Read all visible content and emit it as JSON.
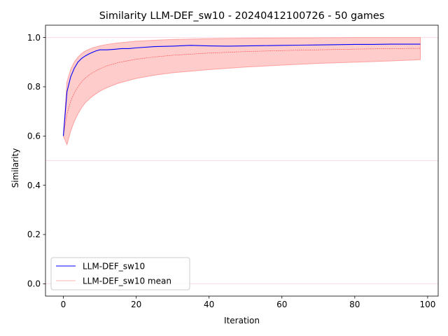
{
  "chart_data": {
    "type": "line",
    "title": "Similarity LLM-DEF_sw10 - 20240412100726 - 50 games",
    "xlabel": "Iteration",
    "ylabel": "Similarity",
    "xlim": [
      -4.9,
      102.9
    ],
    "ylim": [
      -0.05,
      1.05
    ],
    "x_ticks": [
      0,
      20,
      40,
      60,
      80,
      100
    ],
    "y_ticks": [
      0.0,
      0.2,
      0.4,
      0.6,
      0.8,
      1.0
    ],
    "x_tick_labels": [
      "0",
      "20",
      "40",
      "60",
      "80",
      "100"
    ],
    "y_tick_labels": [
      "0.0",
      "0.2",
      "0.4",
      "0.6",
      "0.8",
      "1.0"
    ],
    "hlines": [
      {
        "y": 1.0,
        "color": "#ffc0cb"
      },
      {
        "y": 0.5,
        "color": "#ffc0cb"
      },
      {
        "y": 0.0,
        "color": "#ffc0cb"
      }
    ],
    "grid": false,
    "legend_position": "lower-left",
    "series": [
      {
        "name": "LLM-DEF_sw10",
        "color": "#0000ff",
        "x": [
          0,
          1,
          2,
          3,
          4,
          5,
          6,
          7,
          8,
          9,
          10,
          12,
          14,
          16,
          18,
          20,
          25,
          30,
          35,
          40,
          45,
          50,
          55,
          60,
          65,
          70,
          75,
          80,
          85,
          90,
          95,
          98
        ],
        "values": [
          0.6,
          0.78,
          0.84,
          0.875,
          0.9,
          0.915,
          0.925,
          0.933,
          0.94,
          0.946,
          0.95,
          0.95,
          0.952,
          0.955,
          0.955,
          0.958,
          0.963,
          0.965,
          0.968,
          0.966,
          0.965,
          0.966,
          0.967,
          0.968,
          0.969,
          0.97,
          0.971,
          0.972,
          0.972,
          0.973,
          0.973,
          0.973
        ]
      },
      {
        "name": "LLM-DEF_sw10 mean",
        "color": "#ff0000",
        "x": [
          0,
          1,
          2,
          3,
          4,
          5,
          6,
          7,
          8,
          10,
          12,
          15,
          20,
          25,
          30,
          40,
          50,
          60,
          70,
          80,
          90,
          98
        ],
        "values": [
          0.6,
          0.69,
          0.74,
          0.775,
          0.8,
          0.82,
          0.835,
          0.847,
          0.857,
          0.873,
          0.885,
          0.898,
          0.912,
          0.921,
          0.928,
          0.937,
          0.943,
          0.947,
          0.95,
          0.953,
          0.955,
          0.956
        ]
      }
    ],
    "band": {
      "color": "#ffcccc",
      "edge_color": "#ffa0a0",
      "x": [
        0,
        1,
        2,
        3,
        4,
        5,
        6,
        8,
        10,
        12,
        15,
        20,
        25,
        30,
        40,
        50,
        60,
        70,
        80,
        90,
        98
      ],
      "lower": [
        0.6,
        0.565,
        0.62,
        0.66,
        0.69,
        0.715,
        0.735,
        0.762,
        0.782,
        0.797,
        0.814,
        0.834,
        0.847,
        0.857,
        0.87,
        0.88,
        0.888,
        0.895,
        0.9,
        0.905,
        0.91
      ],
      "upper": [
        0.6,
        0.82,
        0.87,
        0.9,
        0.92,
        0.935,
        0.945,
        0.958,
        0.966,
        0.972,
        0.978,
        0.985,
        0.989,
        0.992,
        0.995,
        0.997,
        0.998,
        0.999,
        1.0,
        1.0,
        1.0
      ]
    }
  }
}
